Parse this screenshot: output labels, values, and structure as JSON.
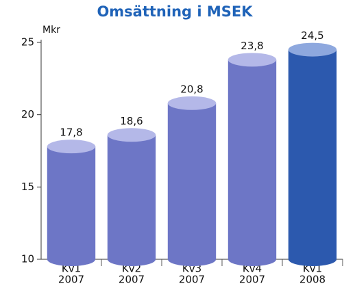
{
  "chart_data": {
    "type": "cylinder-bar",
    "title": "Omsättning i MSEK",
    "y_label": "Mkr",
    "categories": [
      [
        "Kv1",
        "2007"
      ],
      [
        "Kv2",
        "2007"
      ],
      [
        "Kv3",
        "2007"
      ],
      [
        "Kv4",
        "2007"
      ],
      [
        "Kv1",
        "2008"
      ]
    ],
    "values": [
      17.8,
      18.6,
      20.8,
      23.8,
      24.5
    ],
    "value_labels": [
      "17,8",
      "18,6",
      "20,8",
      "23,8",
      "24,5"
    ],
    "colors": [
      "#6d76c6",
      "#6d76c6",
      "#6d76c6",
      "#6d76c6",
      "#2c59ae"
    ],
    "cap_colors": [
      "#b4b8e8",
      "#b4b8e8",
      "#b4b8e8",
      "#b4b8e8",
      "#8ea8de"
    ],
    "ylim": [
      10,
      25
    ],
    "yticks": [
      10,
      15,
      20,
      25
    ]
  }
}
